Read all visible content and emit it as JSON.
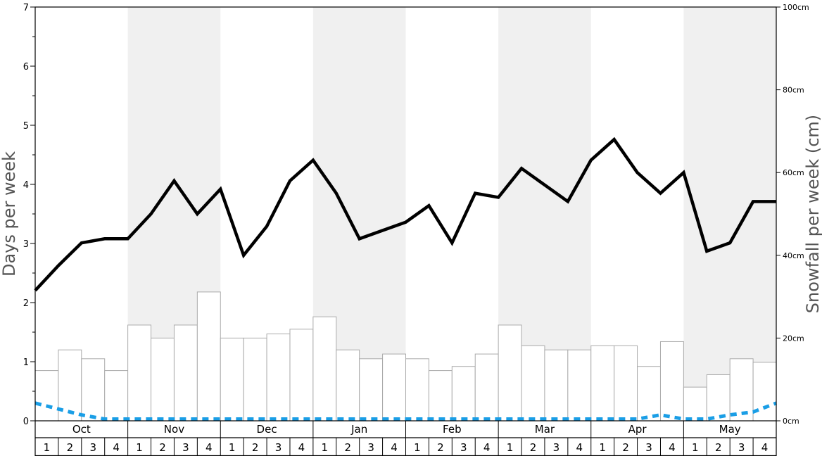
{
  "chart_data": {
    "type": "bar",
    "ylabel": "Days per week",
    "y2label": "Snowfall per week (cm)",
    "ylim": [
      0,
      7
    ],
    "y_ticks": [
      "0",
      "1",
      "2",
      "3",
      "4",
      "5",
      "6",
      "7"
    ],
    "y2lim": [
      0,
      100
    ],
    "y2_ticks": [
      "0cm",
      "20cm",
      "40cm",
      "60cm",
      "80cm",
      "100cm"
    ],
    "months": [
      "Oct",
      "Nov",
      "Dec",
      "Jan",
      "Feb",
      "Mar",
      "Apr",
      "May"
    ],
    "week_labels": [
      "1",
      "2",
      "3",
      "4"
    ],
    "grid": false,
    "shaded_bands": [
      "Nov",
      "Jan",
      "Mar",
      "May"
    ],
    "series": [
      {
        "kind": "bar",
        "axis": "left",
        "values": [
          0.85,
          1.2,
          1.05,
          0.85,
          1.62,
          1.4,
          1.62,
          2.18,
          1.4,
          1.4,
          1.47,
          1.55,
          1.76,
          1.2,
          1.05,
          1.13,
          1.05,
          0.85,
          0.92,
          1.13,
          1.62,
          1.27,
          1.2,
          1.2,
          1.27,
          1.27,
          0.92,
          1.34,
          0.57,
          0.78,
          1.05,
          0.99
        ],
        "color": "#ffffff",
        "stroke": "#aaaaaa"
      },
      {
        "kind": "line",
        "axis": "right",
        "values": [
          31.5,
          37.5,
          43,
          44,
          44,
          50,
          58,
          50,
          56,
          40,
          47,
          58,
          63,
          55,
          44,
          46,
          48,
          52,
          43,
          55,
          54,
          61,
          57,
          53,
          63,
          68,
          60,
          55,
          60,
          41,
          43,
          53,
          53
        ],
        "color": "#000000"
      },
      {
        "kind": "line",
        "axis": "left",
        "style": "dashed",
        "values": [
          0.3,
          0.2,
          0.1,
          0.03,
          0.03,
          0.03,
          0.03,
          0.03,
          0.03,
          0.03,
          0.03,
          0.03,
          0.03,
          0.03,
          0.03,
          0.03,
          0.03,
          0.03,
          0.03,
          0.03,
          0.03,
          0.03,
          0.03,
          0.03,
          0.03,
          0.03,
          0.03,
          0.1,
          0.03,
          0.03,
          0.1,
          0.15,
          0.3
        ],
        "color": "#1a9ee6"
      }
    ]
  }
}
